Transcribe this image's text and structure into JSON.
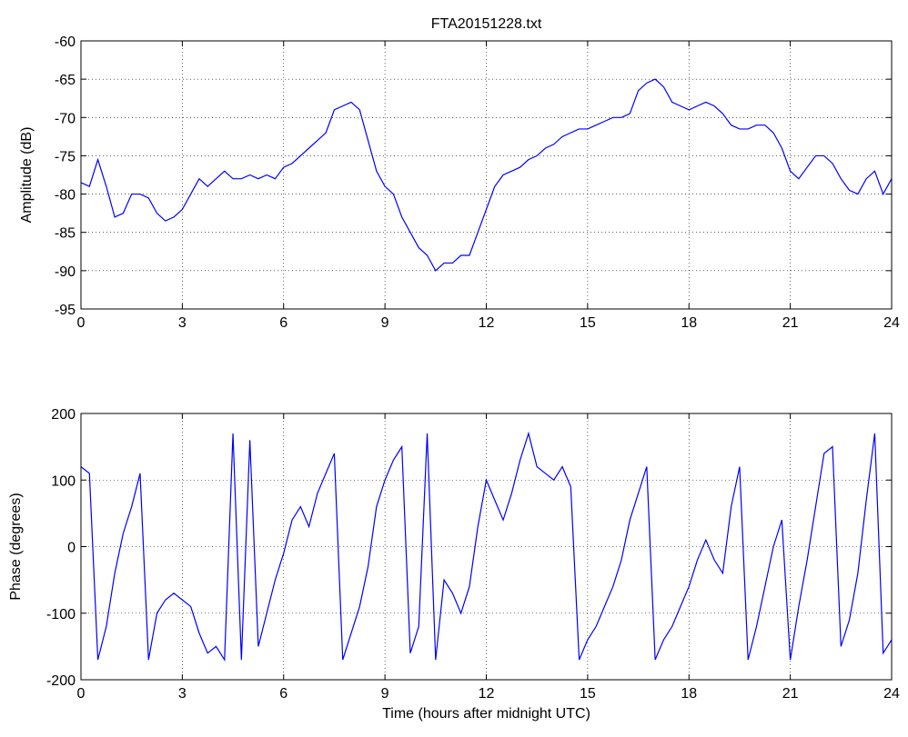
{
  "chart_data": [
    {
      "type": "line",
      "title": "FTA20151228.txt",
      "ylabel": "Amplitude (dB)",
      "x": [
        0,
        0.25,
        0.5,
        0.75,
        1,
        1.25,
        1.5,
        1.75,
        2,
        2.25,
        2.5,
        2.75,
        3,
        3.25,
        3.5,
        3.75,
        4,
        4.25,
        4.5,
        4.75,
        5,
        5.25,
        5.5,
        5.75,
        6,
        6.25,
        6.5,
        6.75,
        7,
        7.25,
        7.5,
        7.75,
        8,
        8.25,
        8.5,
        8.75,
        9,
        9.25,
        9.5,
        9.75,
        10,
        10.25,
        10.5,
        10.75,
        11,
        11.25,
        11.5,
        11.75,
        12,
        12.25,
        12.5,
        12.75,
        13,
        13.25,
        13.5,
        13.75,
        14,
        14.25,
        14.5,
        14.75,
        15,
        15.25,
        15.5,
        15.75,
        16,
        16.25,
        16.5,
        16.75,
        17,
        17.25,
        17.5,
        17.75,
        18,
        18.25,
        18.5,
        18.75,
        19,
        19.25,
        19.5,
        19.75,
        20,
        20.25,
        20.5,
        20.75,
        21,
        21.25,
        21.5,
        21.75,
        22,
        22.25,
        22.5,
        22.75,
        23,
        23.25,
        23.5,
        23.75,
        24
      ],
      "series": [
        {
          "color": "#0000ff",
          "values": [
            -78.5,
            -79,
            -75.5,
            -79,
            -83,
            -82.5,
            -80,
            -80,
            -80.5,
            -82.5,
            -83.5,
            -83,
            -82,
            -80,
            -78,
            -79,
            -78,
            -77,
            -78,
            -78,
            -77.5,
            -78,
            -77.5,
            -78,
            -76.5,
            -76,
            -75,
            -74,
            -73,
            -72,
            -69,
            -68.5,
            -68,
            -69,
            -73,
            -77,
            -79,
            -80,
            -83,
            -85,
            -87,
            -88,
            -90,
            -89,
            -89,
            -88,
            -88,
            -85,
            -82,
            -79,
            -77.5,
            -77,
            -76.5,
            -75.5,
            -75,
            -74,
            -73.5,
            -72.5,
            -72,
            -71.5,
            -71.5,
            -71,
            -70.5,
            -70,
            -70,
            -69.5,
            -66.5,
            -65.5,
            -65,
            -66,
            -68,
            -68.5,
            -69,
            -68.5,
            -68,
            -68.5,
            -69.5,
            -71,
            -71.5,
            -71.5,
            -71,
            -71,
            -72,
            -74,
            -77,
            -78,
            -76.5,
            -75,
            -75,
            -76,
            -78,
            -79.5,
            -80,
            -78,
            -77,
            -80,
            -78
          ]
        }
      ],
      "xlim": [
        0,
        24
      ],
      "xticks": [
        0,
        3,
        6,
        9,
        12,
        15,
        18,
        21,
        24
      ],
      "ylim": [
        -95,
        -60
      ],
      "yticks": [
        -95,
        -90,
        -85,
        -80,
        -75,
        -70,
        -65,
        -60
      ],
      "grid": true
    },
    {
      "type": "line",
      "xlabel": "Time (hours after midnight UTC)",
      "ylabel": "Phase (degrees)",
      "x": [
        0,
        0.25,
        0.5,
        0.75,
        1,
        1.25,
        1.5,
        1.75,
        2,
        2.25,
        2.5,
        2.75,
        3,
        3.25,
        3.5,
        3.75,
        4,
        4.25,
        4.5,
        4.75,
        5,
        5.25,
        5.5,
        5.75,
        6,
        6.25,
        6.5,
        6.75,
        7,
        7.25,
        7.5,
        7.75,
        8,
        8.25,
        8.5,
        8.75,
        9,
        9.25,
        9.5,
        9.75,
        10,
        10.25,
        10.5,
        10.75,
        11,
        11.25,
        11.5,
        11.75,
        12,
        12.25,
        12.5,
        12.75,
        13,
        13.25,
        13.5,
        13.75,
        14,
        14.25,
        14.5,
        14.75,
        15,
        15.25,
        15.5,
        15.75,
        16,
        16.25,
        16.5,
        16.75,
        17,
        17.25,
        17.5,
        17.75,
        18,
        18.25,
        18.5,
        18.75,
        19,
        19.25,
        19.5,
        19.75,
        20,
        20.25,
        20.5,
        20.75,
        21,
        21.25,
        21.5,
        21.75,
        22,
        22.25,
        22.5,
        22.75,
        23,
        23.25,
        23.5,
        23.75,
        24
      ],
      "series": [
        {
          "color": "#0000ff",
          "values": [
            120,
            110,
            -170,
            -120,
            -40,
            20,
            60,
            110,
            -170,
            -100,
            -80,
            -70,
            -80,
            -90,
            -130,
            -160,
            -150,
            -170,
            170,
            -170,
            160,
            -150,
            -100,
            -50,
            -10,
            40,
            60,
            30,
            80,
            110,
            140,
            -170,
            -130,
            -90,
            -30,
            60,
            100,
            130,
            150,
            -160,
            -120,
            170,
            -170,
            -50,
            -70,
            -100,
            -60,
            30,
            100,
            70,
            40,
            80,
            130,
            170,
            120,
            110,
            100,
            120,
            90,
            -170,
            -140,
            -120,
            -90,
            -60,
            -20,
            40,
            80,
            120,
            -170,
            -140,
            -120,
            -90,
            -60,
            -20,
            10,
            -20,
            -40,
            60,
            120,
            -170,
            -120,
            -60,
            0,
            40,
            -170,
            -90,
            -20,
            60,
            140,
            150,
            -150,
            -110,
            -40,
            70,
            170,
            -160,
            -140
          ]
        }
      ],
      "xlim": [
        0,
        24
      ],
      "xticks": [
        0,
        3,
        6,
        9,
        12,
        15,
        18,
        21,
        24
      ],
      "ylim": [
        -200,
        200
      ],
      "yticks": [
        -200,
        -100,
        0,
        100,
        200
      ],
      "grid": true
    }
  ]
}
